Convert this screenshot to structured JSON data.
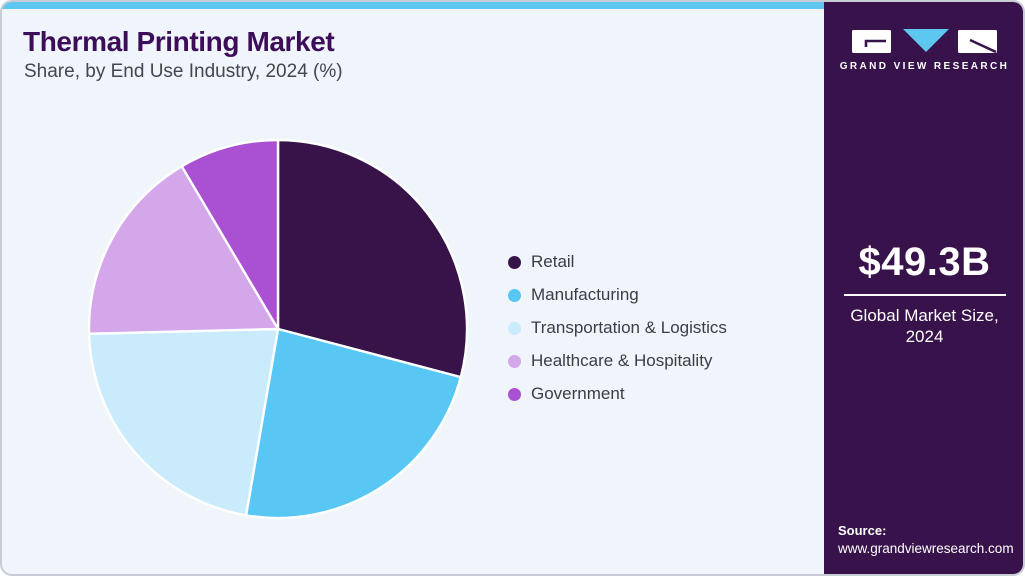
{
  "header": {
    "title": "Thermal Printing Market",
    "subtitle": "Share, by End Use Industry, 2024 (%)"
  },
  "chart_data": {
    "type": "pie",
    "title": "Thermal Printing Market Share, by End Use Industry, 2024 (%)",
    "categories": [
      "Retail",
      "Manufacturing",
      "Transportation & Logistics",
      "Healthcare & Hospitality",
      "Government"
    ],
    "values": [
      29.1,
      23.6,
      21.9,
      16.9,
      8.5
    ],
    "colors": [
      "#371349",
      "#58c7f3",
      "#c9ebfb",
      "#d4a6ea",
      "#aa50d2"
    ],
    "start_angle_deg": 0,
    "direction": "clockwise",
    "legend_position": "right",
    "value_labels_shown": false
  },
  "sidebar": {
    "brand_name": "GRAND VIEW RESEARCH",
    "market_size_value": "$49.3B",
    "market_size_label_line1": "Global Market Size,",
    "market_size_label_line2": "2024",
    "source_label": "Source:",
    "source_url": "www.grandviewresearch.com"
  },
  "colors": {
    "accent_bar": "#5ec7f0",
    "sidebar_background": "#38124a",
    "panel_background": "#eff5fa",
    "title_text": "#3c0e5a",
    "body_text": "#45454d",
    "slice_stroke": "#ffffff",
    "logo_triangle": "#5ec7f0"
  }
}
